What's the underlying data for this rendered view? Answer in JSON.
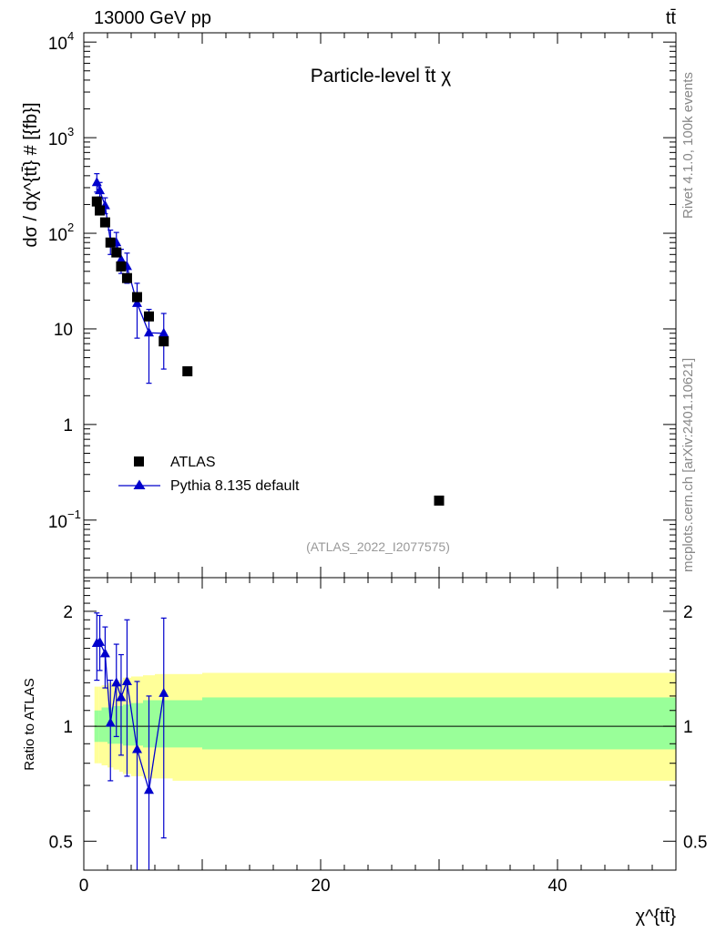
{
  "header": {
    "energy_label": "13000 GeV pp",
    "process_label": "tt̄"
  },
  "side": {
    "rivet_label": "Rivet 4.1.0,  100k events",
    "source_label": "mcplots.cern.ch [arXiv:2401.10621]"
  },
  "chart_data": [
    {
      "type": "scatter",
      "panel": "main",
      "title": "Particle-level t̄t χ",
      "analysis_tag": "(ATLAS_2022_I2077575)",
      "ylabel": "dσ / dχ^{tt̄} # [{fb}]",
      "yscale": "log",
      "xlim": [
        0,
        50
      ],
      "ylim": [
        0.025,
        12500
      ],
      "y_ticks": [
        {
          "value": 10000,
          "base": "10",
          "exp": "4"
        },
        {
          "value": 1000,
          "base": "10",
          "exp": "3"
        },
        {
          "value": 100,
          "base": "10",
          "exp": "2"
        },
        {
          "value": 10,
          "base": "10",
          "exp": ""
        },
        {
          "value": 1,
          "base": "1",
          "exp": ""
        },
        {
          "value": 0.1,
          "base": "10",
          "exp": "−1"
        }
      ],
      "legend": [
        {
          "label": "ATLAS",
          "marker": "square",
          "color": "#000000"
        },
        {
          "label": "Pythia 8.135 default",
          "marker": "triangle",
          "color": "#0000cc"
        }
      ],
      "series": [
        {
          "name": "ATLAS",
          "marker": "square",
          "color": "#000000",
          "points": [
            {
              "x": 1.1,
              "y": 215
            },
            {
              "x": 1.35,
              "y": 173
            },
            {
              "x": 1.8,
              "y": 130
            },
            {
              "x": 2.25,
              "y": 80
            },
            {
              "x": 2.75,
              "y": 63
            },
            {
              "x": 3.15,
              "y": 45
            },
            {
              "x": 3.65,
              "y": 34
            },
            {
              "x": 4.5,
              "y": 21.5
            },
            {
              "x": 5.5,
              "y": 13.5
            },
            {
              "x": 6.75,
              "y": 7.4
            },
            {
              "x": 8.75,
              "y": 3.6
            },
            {
              "x": 30,
              "y": 0.16
            }
          ]
        },
        {
          "name": "Pythia 8.135 default",
          "marker": "triangle",
          "color": "#0000cc",
          "points": [
            {
              "x": 1.1,
              "y": 340,
              "lo": 270,
              "hi": 420
            },
            {
              "x": 1.35,
              "y": 280,
              "lo": 240,
              "hi": 340
            },
            {
              "x": 1.8,
              "y": 195,
              "lo": 160,
              "hi": 235
            },
            {
              "x": 2.25,
              "y": 82,
              "lo": 60,
              "hi": 108
            },
            {
              "x": 2.75,
              "y": 80,
              "lo": 60,
              "hi": 102
            },
            {
              "x": 3.15,
              "y": 53,
              "lo": 38,
              "hi": 68
            },
            {
              "x": 3.65,
              "y": 45,
              "lo": 30,
              "hi": 62
            },
            {
              "x": 4.5,
              "y": 18.5,
              "lo": 8,
              "hi": 30
            },
            {
              "x": 5.5,
              "y": 9.1,
              "lo": 2.7,
              "hi": 16
            },
            {
              "x": 6.75,
              "y": 9.0,
              "lo": 3.8,
              "hi": 14.5
            }
          ]
        }
      ]
    },
    {
      "type": "line",
      "panel": "ratio",
      "ylabel": "Ratio to ATLAS",
      "xlabel": "χ^{tt̄}",
      "xlim": [
        0,
        50
      ],
      "ylim": [
        0.42,
        2.45
      ],
      "yscale": "log",
      "x_ticks": [
        0,
        20,
        40
      ],
      "y_ticks": [
        0.5,
        1,
        2
      ],
      "reference_line": 1,
      "bands": {
        "edges": [
          0.9,
          1.25,
          1.5,
          2.0,
          2.5,
          3.0,
          3.3,
          4.0,
          5.0,
          6.0,
          7.5,
          10.0,
          50.0
        ],
        "inner_color": "#99ff99",
        "outer_color": "#ffff99",
        "inner": [
          [
            0.91,
            1.1
          ],
          [
            0.91,
            1.1
          ],
          [
            0.91,
            1.12
          ],
          [
            0.9,
            1.12
          ],
          [
            0.9,
            1.13
          ],
          [
            0.9,
            1.13
          ],
          [
            0.89,
            1.14
          ],
          [
            0.89,
            1.15
          ],
          [
            0.88,
            1.17
          ],
          [
            0.88,
            1.17
          ],
          [
            0.88,
            1.17
          ],
          [
            0.87,
            1.19
          ]
        ],
        "outer": [
          [
            0.8,
            1.27
          ],
          [
            0.8,
            1.27
          ],
          [
            0.79,
            1.28
          ],
          [
            0.78,
            1.3
          ],
          [
            0.77,
            1.31
          ],
          [
            0.76,
            1.32
          ],
          [
            0.75,
            1.34
          ],
          [
            0.74,
            1.35
          ],
          [
            0.73,
            1.36
          ],
          [
            0.73,
            1.37
          ],
          [
            0.72,
            1.37
          ],
          [
            0.72,
            1.38
          ]
        ]
      },
      "series": [
        {
          "name": "Pythia 8.135 default",
          "color": "#0000cc",
          "marker": "triangle",
          "points": [
            {
              "x": 1.1,
              "y": 1.65,
              "lo": 1.32,
              "hi": 1.98
            },
            {
              "x": 1.35,
              "y": 1.66,
              "lo": 1.4,
              "hi": 1.95
            },
            {
              "x": 1.8,
              "y": 1.55,
              "lo": 1.26,
              "hi": 1.82
            },
            {
              "x": 2.25,
              "y": 1.02,
              "lo": 0.72,
              "hi": 1.32
            },
            {
              "x": 2.75,
              "y": 1.3,
              "lo": 0.94,
              "hi": 1.64
            },
            {
              "x": 3.15,
              "y": 1.19,
              "lo": 0.84,
              "hi": 1.54
            },
            {
              "x": 3.65,
              "y": 1.31,
              "lo": 0.74,
              "hi": 1.9
            },
            {
              "x": 4.5,
              "y": 0.87,
              "lo": 0.37,
              "hi": 1.31
            },
            {
              "x": 5.5,
              "y": 0.68,
              "lo": 0.2,
              "hi": 1.2
            },
            {
              "x": 6.75,
              "y": 1.22,
              "lo": 0.51,
              "hi": 1.92
            }
          ]
        }
      ]
    }
  ]
}
